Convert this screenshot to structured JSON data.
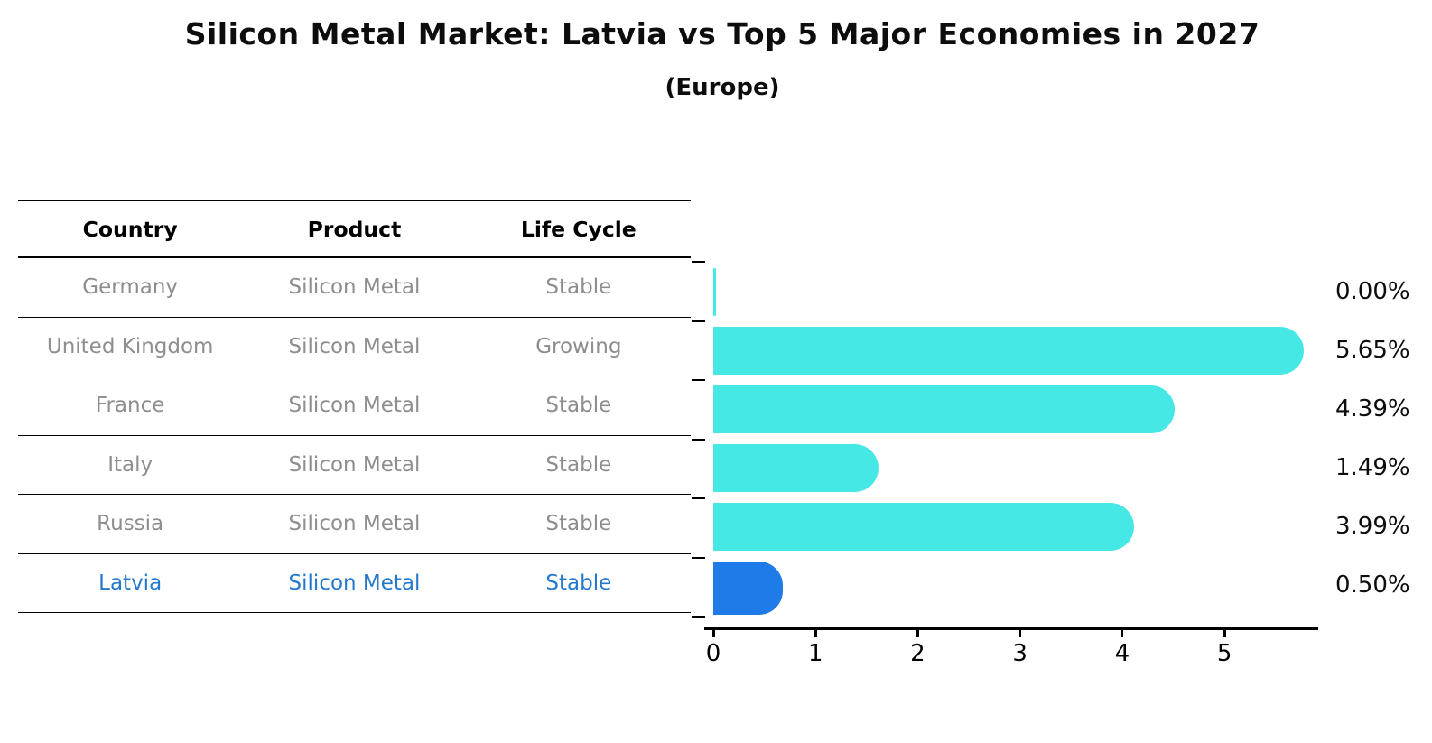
{
  "title": "Silicon Metal Market: Latvia vs Top 5 Major Economies in 2027",
  "subtitle": "(Europe)",
  "table": {
    "headers": [
      "Country",
      "Product",
      "Life Cycle"
    ],
    "rows": [
      {
        "country": "Germany",
        "product": "Silicon Metal",
        "life_cycle": "Stable",
        "highlight": false
      },
      {
        "country": "United Kingdom",
        "product": "Silicon Metal",
        "life_cycle": "Growing",
        "highlight": false
      },
      {
        "country": "France",
        "product": "Silicon Metal",
        "life_cycle": "Stable",
        "highlight": false
      },
      {
        "country": "Italy",
        "product": "Silicon Metal",
        "life_cycle": "Stable",
        "highlight": false
      },
      {
        "country": "Russia",
        "product": "Silicon Metal",
        "life_cycle": "Stable",
        "highlight": false
      },
      {
        "country": "Latvia",
        "product": "Silicon Metal",
        "life_cycle": "Stable",
        "highlight": true
      }
    ]
  },
  "chart_data": {
    "type": "bar",
    "orientation": "horizontal",
    "title": "Silicon Metal Market: Latvia vs Top 5 Major Economies in 2027",
    "subtitle": "(Europe)",
    "categories": [
      "Germany",
      "United Kingdom",
      "France",
      "Italy",
      "Russia",
      "Latvia"
    ],
    "values": [
      0.0,
      5.65,
      4.39,
      1.49,
      3.99,
      0.5
    ],
    "value_labels": [
      "0.00%",
      "5.65%",
      "4.39%",
      "1.49%",
      "3.99%",
      "0.50%"
    ],
    "highlight_index": 5,
    "xlim": [
      0,
      5.9
    ],
    "xticks": [
      0,
      1,
      2,
      3,
      4,
      5
    ],
    "grid": false,
    "legend": "none",
    "colors": {
      "default_bar": "#46e8e6",
      "highlight_bar": "#1e7be8",
      "highlight_border": "#1e7be8",
      "highlight_text": "#2479cc",
      "row_text": "#8e8e8e",
      "axis": "#000000"
    }
  }
}
